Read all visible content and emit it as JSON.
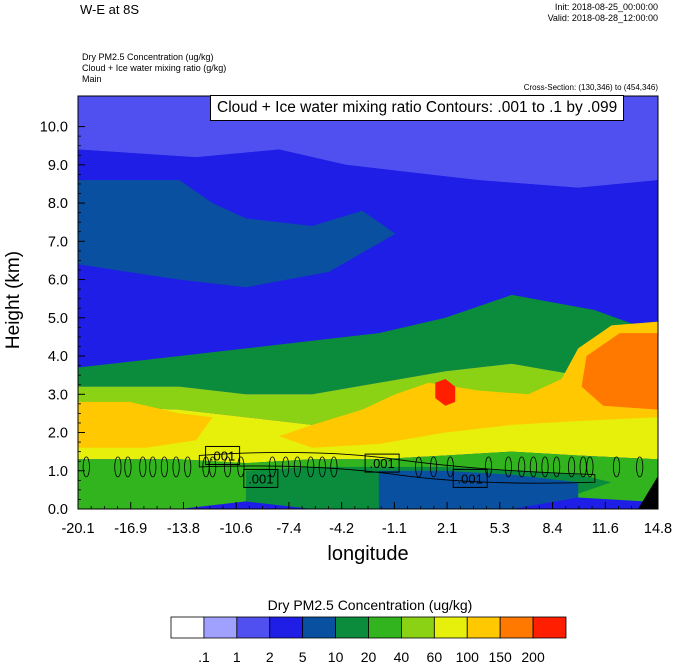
{
  "header": {
    "title": "W-E at 8S",
    "init": "Init: 2018-08-25_00:00:00",
    "valid": "Valid: 2018-08-28_12:00:00",
    "field_lines": [
      "Dry PM2.5 Concentration   (ug/kg)",
      "Cloud + Ice water mixing ratio   (g/kg)",
      "Main"
    ],
    "cross_section": "Cross-Section: (130,346) to (454,346)",
    "contour_title": "Cloud + Ice water mixing ratio Contours: .001 to .1 by .099"
  },
  "chart_data": {
    "type": "heatmap",
    "xlabel": "longitude",
    "ylabel": "Height (km)",
    "xlim": [
      -20.1,
      14.8
    ],
    "ylim": [
      0.0,
      10.8
    ],
    "x_ticks": [
      "-20.1",
      "-16.9",
      "-13.8",
      "-10.6",
      "-7.4",
      "-4.2",
      "-1.1",
      "2.1",
      "5.3",
      "8.4",
      "11.6",
      "14.8"
    ],
    "y_ticks": [
      "0.0",
      "1.0",
      "2.0",
      "3.0",
      "4.0",
      "5.0",
      "6.0",
      "7.0",
      "8.0",
      "9.0",
      "10.0"
    ],
    "colorbar": {
      "title": "Dry PM2.5 Concentration  (ug/kg)",
      "labels": [
        ".1",
        "1",
        "2",
        "5",
        "10",
        "20",
        "40",
        "60",
        "100",
        "150",
        "200"
      ],
      "colors": [
        "#ffffff",
        "#a0a0ff",
        "#5050f0",
        "#1e1ee6",
        "#0a50a0",
        "#0a8c3c",
        "#32b41e",
        "#8cd214",
        "#e6f00a",
        "#ffc800",
        "#ff7800",
        "#ff1e00"
      ]
    },
    "contour_labels": [
      {
        "text": ".001",
        "x": -11.4,
        "y": 1.4
      },
      {
        "text": ".001",
        "x": -9.1,
        "y": 0.8
      },
      {
        "text": ".001",
        "x": -1.8,
        "y": 1.2
      },
      {
        "text": ".001",
        "x": 3.5,
        "y": 0.8
      }
    ],
    "field_regions": [
      {
        "level": 2,
        "desc": "upper troposphere band",
        "poly": [
          [
            -20.1,
            10.8
          ],
          [
            14.8,
            10.8
          ],
          [
            14.8,
            8.6
          ],
          [
            10,
            8.4
          ],
          [
            4,
            8.6
          ],
          [
            0,
            8.8
          ],
          [
            -4,
            9.0
          ],
          [
            -8,
            9.4
          ],
          [
            -13,
            9.2
          ],
          [
            -20.1,
            9.4
          ]
        ]
      },
      {
        "level": 3,
        "desc": "mid band",
        "poly": [
          [
            -20.1,
            9.4
          ],
          [
            -13,
            9.2
          ],
          [
            -8,
            9.4
          ],
          [
            -4,
            9.0
          ],
          [
            0,
            8.8
          ],
          [
            4,
            8.6
          ],
          [
            10,
            8.4
          ],
          [
            14.8,
            8.6
          ],
          [
            14.8,
            4.6
          ],
          [
            11,
            5.2
          ],
          [
            6,
            5.6
          ],
          [
            2,
            5.0
          ],
          [
            -2,
            4.6
          ],
          [
            -6,
            4.4
          ],
          [
            -10,
            4.2
          ],
          [
            -14,
            4.0
          ],
          [
            -20.1,
            3.7
          ]
        ]
      },
      {
        "level": 4,
        "desc": "dark blue patches",
        "poly": [
          [
            -20.1,
            8.6
          ],
          [
            -14,
            8.6
          ],
          [
            -12,
            8.0
          ],
          [
            -10,
            7.6
          ],
          [
            -6,
            7.4
          ],
          [
            -3,
            7.8
          ],
          [
            -1,
            7.2
          ],
          [
            -5,
            6.2
          ],
          [
            -10,
            5.8
          ],
          [
            -14,
            6.0
          ],
          [
            -20.1,
            6.4
          ]
        ]
      },
      {
        "level": 5,
        "desc": "green mid layer",
        "poly": [
          [
            -20.1,
            3.7
          ],
          [
            -14,
            4.0
          ],
          [
            -10,
            4.2
          ],
          [
            -6,
            4.4
          ],
          [
            -2,
            4.6
          ],
          [
            2,
            5.0
          ],
          [
            6,
            5.6
          ],
          [
            11,
            5.2
          ],
          [
            14.8,
            4.6
          ],
          [
            14.8,
            3.2
          ],
          [
            10,
            3.5
          ],
          [
            6,
            3.8
          ],
          [
            2,
            3.6
          ],
          [
            -2,
            3.3
          ],
          [
            -6,
            3.0
          ],
          [
            -10,
            3.0
          ],
          [
            -14,
            3.2
          ],
          [
            -20.1,
            3.2
          ]
        ]
      },
      {
        "level": 7,
        "desc": "yellow-green layer",
        "poly": [
          [
            -20.1,
            3.2
          ],
          [
            -14,
            3.2
          ],
          [
            -10,
            3.0
          ],
          [
            -6,
            3.0
          ],
          [
            -2,
            3.3
          ],
          [
            2,
            3.6
          ],
          [
            6,
            3.8
          ],
          [
            10,
            3.5
          ],
          [
            14.8,
            3.2
          ],
          [
            14.8,
            2.6
          ],
          [
            10,
            2.6
          ],
          [
            6,
            2.9
          ],
          [
            2,
            3.0
          ],
          [
            -2,
            2.5
          ],
          [
            -6,
            2.2
          ],
          [
            -10,
            2.4
          ],
          [
            -14,
            2.6
          ],
          [
            -20.1,
            2.7
          ]
        ]
      },
      {
        "level": 8,
        "desc": "yellow layer",
        "poly": [
          [
            -20.1,
            2.7
          ],
          [
            -14,
            2.6
          ],
          [
            -10,
            2.4
          ],
          [
            -6,
            2.2
          ],
          [
            -2,
            2.5
          ],
          [
            2,
            3.0
          ],
          [
            6,
            2.9
          ],
          [
            10,
            2.6
          ],
          [
            14.8,
            2.6
          ],
          [
            14.8,
            1.3
          ],
          [
            10,
            1.4
          ],
          [
            6,
            1.5
          ],
          [
            2,
            1.4
          ],
          [
            -2,
            1.3
          ],
          [
            -6,
            1.3
          ],
          [
            -10,
            1.2
          ],
          [
            -14,
            1.3
          ],
          [
            -20.1,
            1.3
          ]
        ]
      },
      {
        "level": 9,
        "desc": "orange layer low",
        "poly": [
          [
            -20.1,
            2.8
          ],
          [
            -17,
            2.8
          ],
          [
            -14,
            2.5
          ],
          [
            -12,
            2.4
          ],
          [
            -13,
            1.8
          ],
          [
            -16,
            1.6
          ],
          [
            -20.1,
            1.6
          ]
        ]
      },
      {
        "level": 9,
        "desc": "orange east blob",
        "poly": [
          [
            14.8,
            4.9
          ],
          [
            12,
            4.8
          ],
          [
            10,
            4.2
          ],
          [
            9,
            3.4
          ],
          [
            7,
            3.0
          ],
          [
            4,
            3.1
          ],
          [
            1,
            3.3
          ],
          [
            -1,
            3.0
          ],
          [
            -3,
            2.6
          ],
          [
            -6,
            2.2
          ],
          [
            -8,
            1.9
          ],
          [
            -6,
            1.6
          ],
          [
            -2,
            1.7
          ],
          [
            2,
            2.0
          ],
          [
            6,
            2.2
          ],
          [
            10,
            2.3
          ],
          [
            14.8,
            2.4
          ]
        ]
      },
      {
        "level": 10,
        "desc": "dark orange east",
        "poly": [
          [
            14.8,
            4.6
          ],
          [
            12.5,
            4.6
          ],
          [
            10.5,
            4.0
          ],
          [
            10.2,
            3.2
          ],
          [
            11.5,
            2.7
          ],
          [
            14.8,
            2.6
          ]
        ]
      },
      {
        "level": 11,
        "desc": "red core",
        "poly": [
          [
            1.4,
            3.3
          ],
          [
            2.0,
            3.4
          ],
          [
            2.6,
            3.2
          ],
          [
            2.6,
            2.8
          ],
          [
            2.0,
            2.7
          ],
          [
            1.4,
            2.9
          ]
        ]
      },
      {
        "level": 6,
        "desc": "light green near surface",
        "poly": [
          [
            -20.1,
            1.3
          ],
          [
            -14,
            1.3
          ],
          [
            -10,
            1.2
          ],
          [
            -6,
            1.3
          ],
          [
            -2,
            1.3
          ],
          [
            2,
            1.4
          ],
          [
            6,
            1.5
          ],
          [
            10,
            1.4
          ],
          [
            14.8,
            1.3
          ],
          [
            14.8,
            0.4
          ],
          [
            14,
            0.2
          ],
          [
            10,
            0.3
          ],
          [
            6,
            0.5
          ],
          [
            2,
            0.6
          ],
          [
            -2,
            0.5
          ],
          [
            -6,
            0.4
          ],
          [
            -10,
            0.2
          ],
          [
            -14,
            0.0
          ],
          [
            -20.1,
            0.0
          ]
        ]
      },
      {
        "level": 5,
        "desc": "green near surface",
        "poly": [
          [
            -10,
            1.0
          ],
          [
            -6,
            1.1
          ],
          [
            -2,
            1.1
          ],
          [
            2,
            1.1
          ],
          [
            6,
            1.0
          ],
          [
            10,
            0.9
          ],
          [
            12,
            0.7
          ],
          [
            10,
            0.4
          ],
          [
            6,
            0.1
          ],
          [
            2,
            0.0
          ],
          [
            -2,
            0.0
          ],
          [
            -6,
            0.0
          ],
          [
            -10,
            0.2
          ]
        ]
      },
      {
        "level": 4,
        "desc": "dark green surface",
        "poly": [
          [
            -2,
            1.0
          ],
          [
            2,
            1.0
          ],
          [
            6,
            0.9
          ],
          [
            10,
            0.7
          ],
          [
            10,
            0.3
          ],
          [
            6,
            0.0
          ],
          [
            -2,
            0.0
          ]
        ]
      }
    ]
  }
}
